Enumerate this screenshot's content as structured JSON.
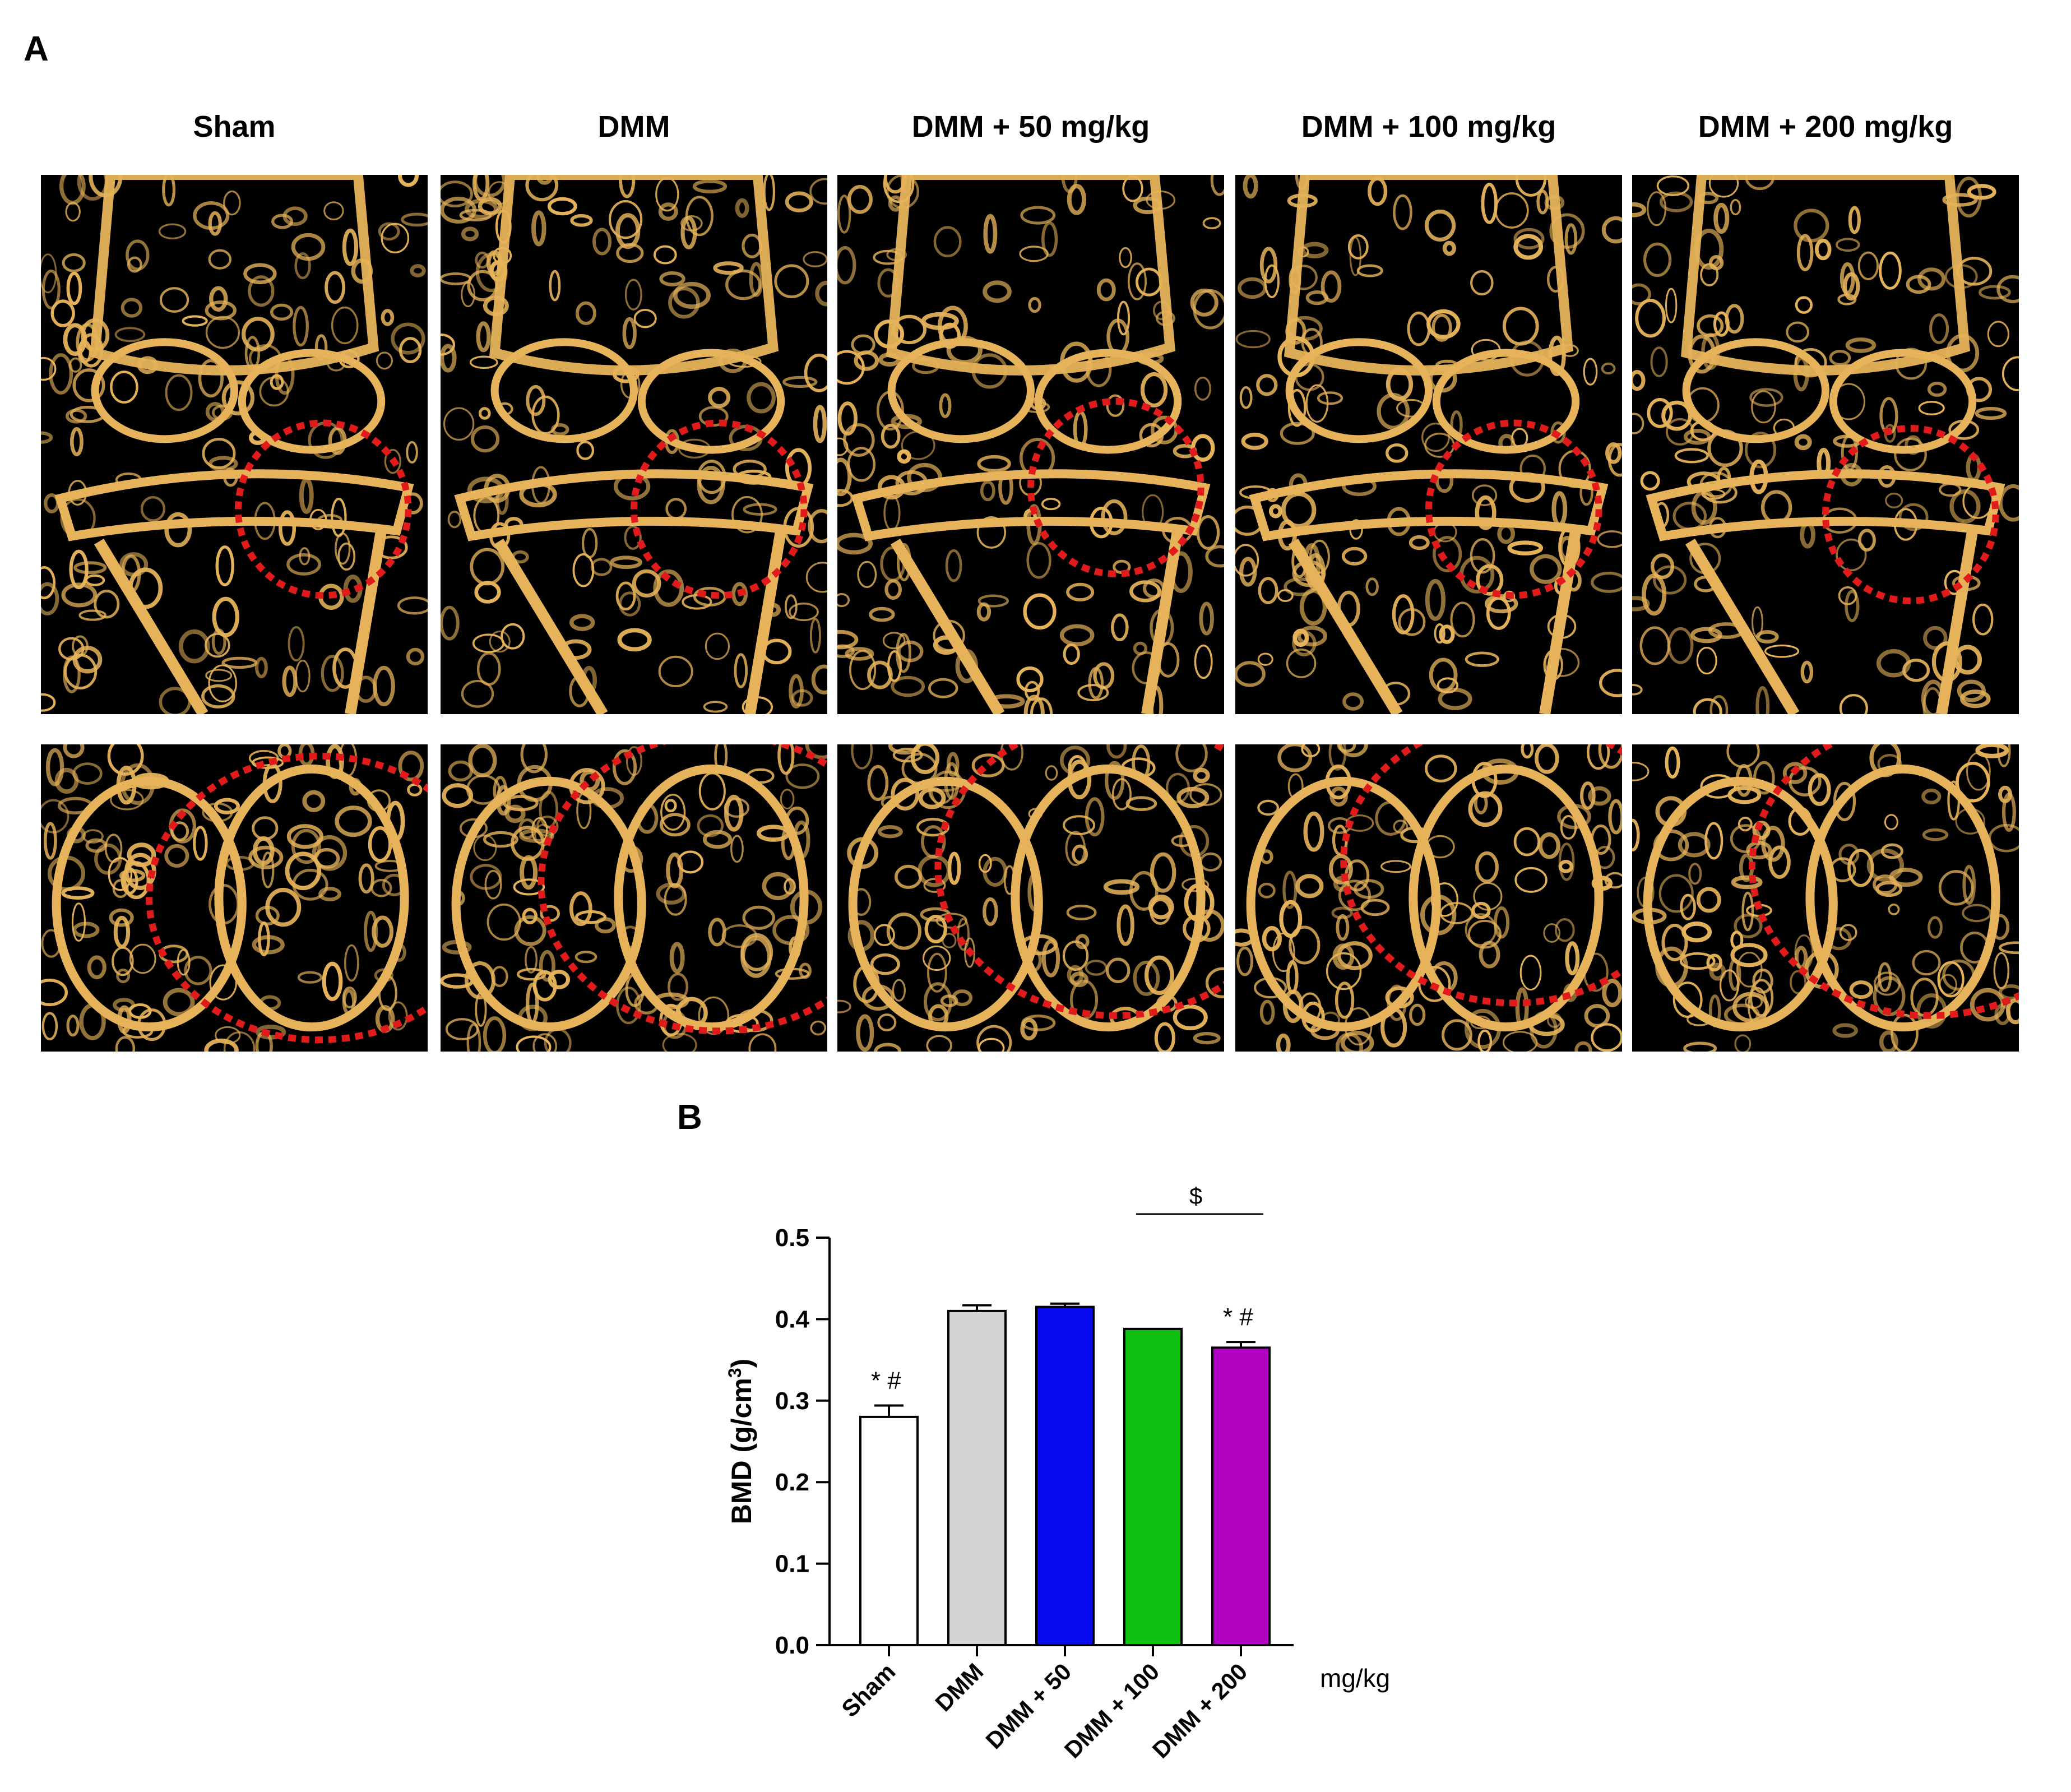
{
  "panel_a": {
    "letter": "A",
    "columns": [
      "Sham",
      "DMM",
      "DMM + 50 mg/kg",
      "DMM + 100 mg/kg",
      "DMM + 200 mg/kg"
    ],
    "image_rows": [
      "coronal micro-CT",
      "axial micro-CT"
    ],
    "highlight_color": "#e11b1b",
    "bone_color": "#e6b35a"
  },
  "panel_b": {
    "letter": "B",
    "chart_data": {
      "type": "bar",
      "categories": [
        "Sham",
        "DMM",
        "DMM + 50",
        "DMM + 100",
        "DMM + 200"
      ],
      "values": [
        0.28,
        0.41,
        0.415,
        0.388,
        0.365
      ],
      "errors": [
        0.014,
        0.007,
        0.004,
        0.0,
        0.007
      ],
      "colors": [
        "#ffffff",
        "#d3d3d3",
        "#0a0aef",
        "#10c010",
        "#b000c0"
      ],
      "ylabel": "BMD (g/cm",
      "ylabel_sup": "3",
      "ylabel_end": ")",
      "xunit": "mg/kg",
      "ylim": [
        0,
        0.5
      ],
      "yticks": [
        "0.0",
        "0.1",
        "0.2",
        "0.3",
        "0.4",
        "0.5"
      ],
      "annotations": {
        "sham": "* #",
        "dmm200": "* #",
        "bracket": "$"
      }
    }
  }
}
